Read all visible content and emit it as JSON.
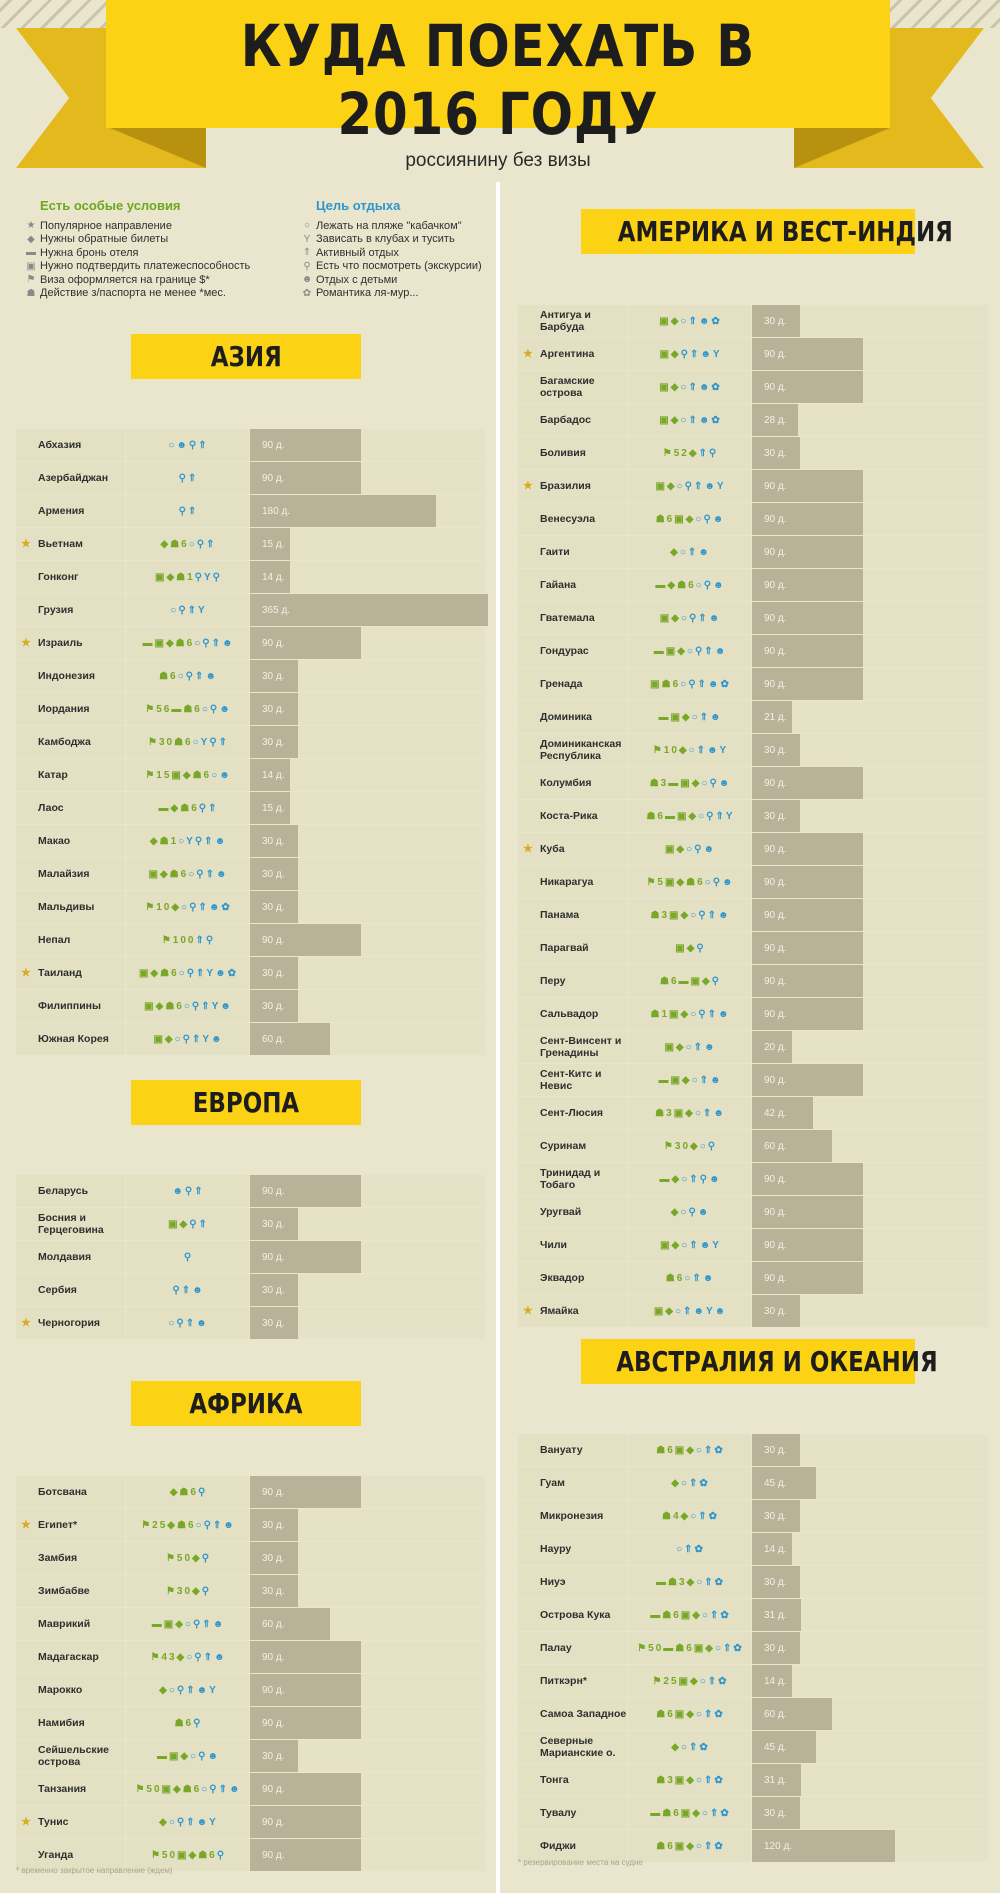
{
  "header": {
    "title": "КУДА ПОЕХАТЬ В 2016 ГОДУ",
    "subtitle": "россиянину без визы"
  },
  "colors": {
    "banner": "#fcd215",
    "ribbon": "#e3b91d",
    "green": "#79a728",
    "blue": "#2f96cc",
    "bar": "#b8b299",
    "star": "#d8ac22"
  },
  "legend": {
    "special_title": "Есть особые условия",
    "special": [
      {
        "icon": "star-icon",
        "label": "Популярное направление"
      },
      {
        "icon": "ticket-icon",
        "label": "Нужны обратные билеты"
      },
      {
        "icon": "bed-icon",
        "label": "Нужна бронь отеля"
      },
      {
        "icon": "money-icon",
        "label": "Нужно подтвердить платежеспособность"
      },
      {
        "icon": "flag-icon",
        "label": "Виза оформляется на границе $*"
      },
      {
        "icon": "passport-icon",
        "label": "Действие з/паспорта не менее *мес."
      }
    ],
    "purpose_title": "Цель отдыха",
    "purpose": [
      {
        "icon": "sun-icon",
        "label": "Лежать на пляже \"кабачком\""
      },
      {
        "icon": "cocktail-icon",
        "label": "Зависать в клубах и тусить"
      },
      {
        "icon": "active-icon",
        "label": "Активный отдых"
      },
      {
        "icon": "pin-icon",
        "label": "Есть что посмотреть (экскурсии)"
      },
      {
        "icon": "family-icon",
        "label": "Отдых с детьми"
      },
      {
        "icon": "heart-icon",
        "label": "Романтика ля-мур..."
      }
    ]
  },
  "sections": {
    "asia": {
      "title": "АЗИЯ",
      "rows": [
        {
          "name": "Абхазия",
          "days": 90,
          "label": "90 д.",
          "star": false,
          "icons": "○☻⚲⇑",
          "num": ""
        },
        {
          "name": "Азербайджан",
          "days": 90,
          "label": "90 д.",
          "star": false,
          "icons": "⚲⇑",
          "num": ""
        },
        {
          "name": "Армения",
          "days": 180,
          "label": "180 д.",
          "star": false,
          "icons": "⚲⇑",
          "num": ""
        },
        {
          "name": "Вьетнам",
          "days": 15,
          "label": "15 д.",
          "star": true,
          "icons": "◆☗6○⚲⇑",
          "num": ""
        },
        {
          "name": "Гонконг",
          "days": 14,
          "label": "14 д.",
          "star": false,
          "icons": "▣◆☗1⚲Y⚲",
          "num": ""
        },
        {
          "name": "Грузия",
          "days": 365,
          "label": "365 д.",
          "star": false,
          "icons": "○⚲⇑Y",
          "num": ""
        },
        {
          "name": "Израиль",
          "days": 90,
          "label": "90 д.",
          "star": true,
          "icons": "▬▣◆☗6○⚲⇑☻",
          "num": ""
        },
        {
          "name": "Индонезия",
          "days": 30,
          "label": "30 д.",
          "star": false,
          "icons": "☗6○⚲⇑☻",
          "num": ""
        },
        {
          "name": "Иордания",
          "days": 30,
          "label": "30 д.",
          "star": false,
          "icons": "⚑56▬☗6○⚲☻",
          "num": ""
        },
        {
          "name": "Камбоджа",
          "days": 30,
          "label": "30 д.",
          "star": false,
          "icons": "⚑30☗6○Y⚲⇑",
          "num": ""
        },
        {
          "name": "Катар",
          "days": 14,
          "label": "14 д.",
          "star": false,
          "icons": "⚑15▣◆☗6○☻",
          "num": ""
        },
        {
          "name": "Лаос",
          "days": 15,
          "label": "15 д.",
          "star": false,
          "icons": "▬◆☗6⚲⇑",
          "num": ""
        },
        {
          "name": "Макао",
          "days": 30,
          "label": "30 д.",
          "star": false,
          "icons": "◆☗1○Y⚲⇑☻",
          "num": ""
        },
        {
          "name": "Малайзия",
          "days": 30,
          "label": "30 д.",
          "star": false,
          "icons": "▣◆☗6○⚲⇑☻",
          "num": ""
        },
        {
          "name": "Мальдивы",
          "days": 30,
          "label": "30 д.",
          "star": false,
          "icons": "⚑10◆○⚲⇑☻✿",
          "num": ""
        },
        {
          "name": "Непал",
          "days": 90,
          "label": "90 д.",
          "star": false,
          "icons": "⚑100⇑⚲",
          "num": ""
        },
        {
          "name": "Таиланд",
          "days": 30,
          "label": "30 д.",
          "star": true,
          "icons": "▣◆☗6○⚲⇑Y☻✿",
          "num": ""
        },
        {
          "name": "Филиппины",
          "days": 30,
          "label": "30 д.",
          "star": false,
          "icons": "▣◆☗6○⚲⇑Y☻",
          "num": ""
        },
        {
          "name": "Южная Корея",
          "days": 60,
          "label": "60 д.",
          "star": false,
          "icons": "▣◆○⚲⇑Y☻",
          "num": ""
        }
      ]
    },
    "europe": {
      "title": "ЕВРОПА",
      "rows": [
        {
          "name": "Беларусь",
          "days": 90,
          "label": "90 д.",
          "star": false,
          "icons": "☻⚲⇑"
        },
        {
          "name": "Босния и Герцеговина",
          "days": 30,
          "label": "30 д.",
          "star": false,
          "icons": "▣◆⚲⇑"
        },
        {
          "name": "Молдавия",
          "days": 90,
          "label": "90 д.",
          "star": false,
          "icons": "⚲"
        },
        {
          "name": "Сербия",
          "days": 30,
          "label": "30 д.",
          "star": false,
          "icons": "⚲⇑☻"
        },
        {
          "name": "Черногория",
          "days": 30,
          "label": "30 д.",
          "star": true,
          "icons": "○⚲⇑☻"
        }
      ]
    },
    "africa": {
      "title": "АФРИКА",
      "rows": [
        {
          "name": "Ботсвана",
          "days": 90,
          "label": "90 д.",
          "star": false,
          "icons": "◆☗6⚲"
        },
        {
          "name": "Египет*",
          "days": 30,
          "label": "30 д.",
          "star": true,
          "icons": "⚑25◆☗6○⚲⇑☻"
        },
        {
          "name": "Замбия",
          "days": 30,
          "label": "30 д.",
          "star": false,
          "icons": "⚑50◆⚲"
        },
        {
          "name": "Зимбабве",
          "days": 30,
          "label": "30 д.",
          "star": false,
          "icons": "⚑30◆⚲"
        },
        {
          "name": "Маврикий",
          "days": 60,
          "label": "60 д.",
          "star": false,
          "icons": "▬▣◆○⚲⇑☻"
        },
        {
          "name": "Мадагаскар",
          "days": 90,
          "label": "90 д.",
          "star": false,
          "icons": "⚑43◆○⚲⇑☻"
        },
        {
          "name": "Марокко",
          "days": 90,
          "label": "90 д.",
          "star": false,
          "icons": "◆○⚲⇑☻Y"
        },
        {
          "name": "Намибия",
          "days": 90,
          "label": "90 д.",
          "star": false,
          "icons": "☗6⚲"
        },
        {
          "name": "Сейшельские острова",
          "days": 30,
          "label": "30 д.",
          "star": false,
          "icons": "▬▣◆○⚲☻"
        },
        {
          "name": "Танзания",
          "days": 90,
          "label": "90 д.",
          "star": false,
          "icons": "⚑50▣◆☗6○⚲⇑☻"
        },
        {
          "name": "Тунис",
          "days": 90,
          "label": "90 д.",
          "star": true,
          "icons": "◆○⚲⇑☻Y"
        },
        {
          "name": "Уганда",
          "days": 90,
          "label": "90 д.",
          "star": false,
          "icons": "⚑50▣◆☗6⚲"
        }
      ]
    },
    "america": {
      "title": "АМЕРИКА И ВЕСТ-ИНДИЯ",
      "rows": [
        {
          "name": "Антигуа и Барбуда",
          "days": 30,
          "label": "30 д.",
          "star": false,
          "icons": "▣◆○⇑☻✿"
        },
        {
          "name": "Аргентина",
          "days": 90,
          "label": "90 д.",
          "star": true,
          "icons": "▣◆⚲⇑☻Y"
        },
        {
          "name": "Багамские острова",
          "days": 90,
          "label": "90 д.",
          "star": false,
          "icons": "▣◆○⇑☻✿"
        },
        {
          "name": "Барбадос",
          "days": 28,
          "label": "28 д.",
          "star": false,
          "icons": "▣◆○⇑☻✿"
        },
        {
          "name": "Боливия",
          "days": 30,
          "label": "30 д.",
          "star": false,
          "icons": "⚑52◆⇑⚲"
        },
        {
          "name": "Бразилия",
          "days": 90,
          "label": "90 д.",
          "star": true,
          "icons": "▣◆○⚲⇑☻Y"
        },
        {
          "name": "Венесуэла",
          "days": 90,
          "label": "90 д.",
          "star": false,
          "icons": "☗6▣◆○⚲☻"
        },
        {
          "name": "Гаити",
          "days": 90,
          "label": "90 д.",
          "star": false,
          "icons": "◆○⇑☻"
        },
        {
          "name": "Гайана",
          "days": 90,
          "label": "90 д.",
          "star": false,
          "icons": "▬◆☗6○⚲☻"
        },
        {
          "name": "Гватемала",
          "days": 90,
          "label": "90 д.",
          "star": false,
          "icons": "▣◆○⚲⇑☻"
        },
        {
          "name": "Гондурас",
          "days": 90,
          "label": "90 д.",
          "star": false,
          "icons": "▬▣◆○⚲⇑☻"
        },
        {
          "name": "Гренада",
          "days": 90,
          "label": "90 д.",
          "star": false,
          "icons": "▣☗6○⚲⇑☻✿"
        },
        {
          "name": "Доминика",
          "days": 21,
          "label": "21 д.",
          "star": false,
          "icons": "▬▣◆○⇑☻"
        },
        {
          "name": "Доминиканская Республика",
          "days": 30,
          "label": "30 д.",
          "star": false,
          "icons": "⚑10◆○⇑☻Y"
        },
        {
          "name": "Колумбия",
          "days": 90,
          "label": "90 д.",
          "star": false,
          "icons": "☗3▬▣◆○⚲☻"
        },
        {
          "name": "Коста-Рика",
          "days": 30,
          "label": "30 д.",
          "star": false,
          "icons": "☗6▬▣◆○⚲⇑Y"
        },
        {
          "name": "Куба",
          "days": 90,
          "label": "90 д.",
          "star": true,
          "icons": "▣◆○⚲☻"
        },
        {
          "name": "Никарагуа",
          "days": 90,
          "label": "90 д.",
          "star": false,
          "icons": "⚑5▣◆☗6○⚲☻"
        },
        {
          "name": "Панама",
          "days": 90,
          "label": "90 д.",
          "star": false,
          "icons": "☗3▣◆○⚲⇑☻"
        },
        {
          "name": "Парагвай",
          "days": 90,
          "label": "90 д.",
          "star": false,
          "icons": "▣◆⚲"
        },
        {
          "name": "Перу",
          "days": 90,
          "label": "90 д.",
          "star": false,
          "icons": "☗6▬▣◆⚲"
        },
        {
          "name": "Сальвадор",
          "days": 90,
          "label": "90 д.",
          "star": false,
          "icons": "☗1▣◆○⚲⇑☻"
        },
        {
          "name": "Сент-Винсент и Гренадины",
          "days": 20,
          "label": "20 д.",
          "star": false,
          "icons": "▣◆○⇑☻"
        },
        {
          "name": "Сент-Китс и Невис",
          "days": 90,
          "label": "90 д.",
          "star": false,
          "icons": "▬▣◆○⇑☻"
        },
        {
          "name": "Сент-Люсия",
          "days": 42,
          "label": "42 д.",
          "star": false,
          "icons": "☗3▣◆○⇑☻"
        },
        {
          "name": "Суринам",
          "days": 60,
          "label": "60 д.",
          "star": false,
          "icons": "⚑30◆○⚲"
        },
        {
          "name": "Тринидад и Тобаго",
          "days": 90,
          "label": "90 д.",
          "star": false,
          "icons": "▬◆○⇑⚲☻"
        },
        {
          "name": "Уругвай",
          "days": 90,
          "label": "90 д.",
          "star": false,
          "icons": "◆○⚲☻"
        },
        {
          "name": "Чили",
          "days": 90,
          "label": "90 д.",
          "star": false,
          "icons": "▣◆○⇑☻Y"
        },
        {
          "name": "Эквадор",
          "days": 90,
          "label": "90 д.",
          "star": false,
          "icons": "☗6○⇑☻"
        },
        {
          "name": "Ямайка",
          "days": 30,
          "label": "30 д.",
          "star": true,
          "icons": "▣◆○⇑☻Y☻"
        }
      ]
    },
    "oceania": {
      "title": "АВСТРАЛИЯ И ОКЕАНИЯ",
      "rows": [
        {
          "name": "Вануату",
          "days": 30,
          "label": "30 д.",
          "star": false,
          "icons": "☗6▣◆○⇑✿"
        },
        {
          "name": "Гуам",
          "days": 45,
          "label": "45 д.",
          "star": false,
          "icons": "◆○⇑✿"
        },
        {
          "name": "Микронезия",
          "days": 30,
          "label": "30 д.",
          "star": false,
          "icons": "☗4◆○⇑✿"
        },
        {
          "name": "Науру",
          "days": 14,
          "label": "14 д.",
          "star": false,
          "icons": "○⇑✿"
        },
        {
          "name": "Ниуэ",
          "days": 30,
          "label": "30 д.",
          "star": false,
          "icons": "▬☗3◆○⇑✿"
        },
        {
          "name": "Острова Кука",
          "days": 31,
          "label": "31 д.",
          "star": false,
          "icons": "▬☗6▣◆○⇑✿"
        },
        {
          "name": "Палау",
          "days": 30,
          "label": "30 д.",
          "star": false,
          "icons": "⚑50▬☗6▣◆○⇑✿"
        },
        {
          "name": "Питкэрн*",
          "days": 14,
          "label": "14 д.",
          "star": false,
          "icons": "⚑25▣◆○⇑✿"
        },
        {
          "name": "Самоа Западное",
          "days": 60,
          "label": "60 д.",
          "star": false,
          "icons": "☗6▣◆○⇑✿"
        },
        {
          "name": "Северные Марианские о.",
          "days": 45,
          "label": "45 д.",
          "star": false,
          "icons": "◆○⇑✿"
        },
        {
          "name": "Тонга",
          "days": 31,
          "label": "31 д.",
          "star": false,
          "icons": "☗3▣◆○⇑✿"
        },
        {
          "name": "Тувалу",
          "days": 30,
          "label": "30 д.",
          "star": false,
          "icons": "▬☗6▣◆○⇑✿"
        },
        {
          "name": "Фиджи",
          "days": 120,
          "label": "120 д.",
          "star": false,
          "icons": "☗6▣◆○⇑✿"
        }
      ]
    }
  },
  "footnotes": {
    "left": "* временно закрытое направление (ждем)",
    "right": "* резервирование места на судне"
  }
}
